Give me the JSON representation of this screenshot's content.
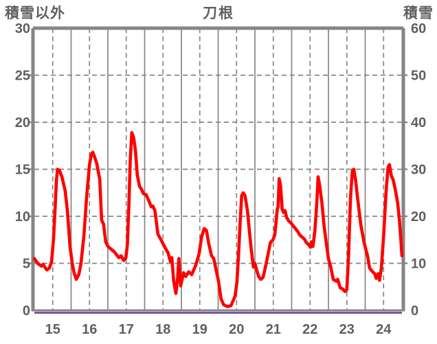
{
  "chart_data": {
    "type": "line",
    "title": "刀根",
    "left_axis_title": "積雪以外",
    "right_axis_title": "積雪",
    "left_axis": {
      "min": 0,
      "max": 30,
      "ticks": [
        0,
        5,
        10,
        15,
        20,
        25,
        30
      ]
    },
    "right_axis": {
      "min": 0,
      "max": 60,
      "ticks": [
        0,
        10,
        20,
        30,
        40,
        50,
        60
      ]
    },
    "x_axis": {
      "start_day": 15,
      "end_day": 25,
      "labels": [
        "15",
        "16",
        "17",
        "18",
        "19",
        "20",
        "21",
        "22",
        "23",
        "24"
      ],
      "label_position": "noon of each day"
    },
    "grid": {
      "horizontal": "dashed every 5 (left scale)",
      "vertical_solid": "midnight of each day",
      "vertical_dashed": "noon of each day"
    },
    "legend_position": "none",
    "series": [
      {
        "name": "積雪以外 (left axis)",
        "axis": "left",
        "color": "#ff0000",
        "points": [
          [
            15.0,
            5.5
          ],
          [
            15.09,
            5.0
          ],
          [
            15.19,
            4.7
          ],
          [
            15.24,
            4.9
          ],
          [
            15.3,
            4.5
          ],
          [
            15.34,
            4.3
          ],
          [
            15.41,
            4.5
          ],
          [
            15.47,
            5.2
          ],
          [
            15.52,
            7.5
          ],
          [
            15.56,
            10.5
          ],
          [
            15.6,
            13.8
          ],
          [
            15.63,
            15.0
          ],
          [
            15.68,
            14.9
          ],
          [
            15.75,
            14.2
          ],
          [
            15.84,
            12.7
          ],
          [
            15.9,
            10.5
          ],
          [
            15.97,
            6.8
          ],
          [
            16.03,
            5.0
          ],
          [
            16.08,
            4.0
          ],
          [
            16.14,
            3.3
          ],
          [
            16.21,
            3.8
          ],
          [
            16.27,
            5.0
          ],
          [
            16.35,
            8.0
          ],
          [
            16.42,
            12.0
          ],
          [
            16.5,
            15.5
          ],
          [
            16.55,
            16.6
          ],
          [
            16.59,
            16.8
          ],
          [
            16.64,
            16.3
          ],
          [
            16.7,
            15.6
          ],
          [
            16.78,
            13.9
          ],
          [
            16.83,
            9.6
          ],
          [
            16.88,
            9.2
          ],
          [
            16.94,
            7.3
          ],
          [
            17.0,
            6.8
          ],
          [
            17.06,
            6.6
          ],
          [
            17.12,
            6.4
          ],
          [
            17.18,
            6.2
          ],
          [
            17.24,
            5.9
          ],
          [
            17.3,
            5.6
          ],
          [
            17.36,
            5.8
          ],
          [
            17.43,
            5.3
          ],
          [
            17.49,
            5.6
          ],
          [
            17.53,
            7.0
          ],
          [
            17.57,
            11.0
          ],
          [
            17.61,
            16.0
          ],
          [
            17.65,
            18.9
          ],
          [
            17.7,
            18.4
          ],
          [
            17.75,
            17.0
          ],
          [
            17.8,
            14.4
          ],
          [
            17.86,
            13.2
          ],
          [
            17.91,
            12.9
          ],
          [
            17.97,
            12.4
          ],
          [
            18.04,
            12.3
          ],
          [
            18.12,
            11.6
          ],
          [
            18.18,
            11.0
          ],
          [
            18.22,
            11.1
          ],
          [
            18.28,
            10.6
          ],
          [
            18.36,
            8.1
          ],
          [
            18.46,
            7.4
          ],
          [
            18.55,
            6.7
          ],
          [
            18.64,
            6.1
          ],
          [
            18.7,
            5.2
          ],
          [
            18.74,
            5.6
          ],
          [
            18.79,
            3.1
          ],
          [
            18.85,
            1.8
          ],
          [
            18.9,
            3.5
          ],
          [
            18.93,
            5.5
          ],
          [
            18.98,
            2.6
          ],
          [
            19.06,
            4.0
          ],
          [
            19.12,
            3.6
          ],
          [
            19.2,
            4.1
          ],
          [
            19.28,
            3.8
          ],
          [
            19.39,
            4.8
          ],
          [
            19.48,
            6.0
          ],
          [
            19.55,
            7.8
          ],
          [
            19.62,
            8.7
          ],
          [
            19.68,
            8.5
          ],
          [
            19.75,
            7.0
          ],
          [
            19.82,
            5.8
          ],
          [
            19.88,
            5.5
          ],
          [
            19.95,
            4.2
          ],
          [
            20.01,
            3.1
          ],
          [
            20.08,
            1.2
          ],
          [
            20.15,
            0.6
          ],
          [
            20.25,
            0.4
          ],
          [
            20.35,
            0.5
          ],
          [
            20.46,
            1.5
          ],
          [
            20.51,
            3.0
          ],
          [
            20.55,
            5.5
          ],
          [
            20.6,
            9.5
          ],
          [
            20.64,
            12.2
          ],
          [
            20.68,
            12.5
          ],
          [
            20.73,
            12.2
          ],
          [
            20.8,
            10.5
          ],
          [
            20.85,
            8.4
          ],
          [
            20.9,
            6.5
          ],
          [
            20.93,
            5.5
          ],
          [
            20.96,
            4.6
          ],
          [
            21.0,
            5.0
          ],
          [
            21.04,
            4.4
          ],
          [
            21.1,
            3.6
          ],
          [
            21.16,
            3.3
          ],
          [
            21.22,
            3.5
          ],
          [
            21.28,
            4.5
          ],
          [
            21.35,
            5.8
          ],
          [
            21.42,
            7.2
          ],
          [
            21.49,
            7.5
          ],
          [
            21.54,
            8.0
          ],
          [
            21.58,
            9.6
          ],
          [
            21.61,
            10.8
          ],
          [
            21.63,
            11.0
          ],
          [
            21.66,
            14.0
          ],
          [
            21.7,
            13.2
          ],
          [
            21.74,
            10.8
          ],
          [
            21.78,
            10.4
          ],
          [
            21.82,
            10.6
          ],
          [
            21.86,
            9.9
          ],
          [
            21.92,
            9.5
          ],
          [
            21.98,
            9.3
          ],
          [
            22.04,
            9.0
          ],
          [
            22.1,
            8.7
          ],
          [
            22.16,
            8.4
          ],
          [
            22.22,
            8.0
          ],
          [
            22.28,
            7.8
          ],
          [
            22.34,
            7.6
          ],
          [
            22.4,
            7.2
          ],
          [
            22.46,
            7.0
          ],
          [
            22.51,
            6.7
          ],
          [
            22.54,
            7.3
          ],
          [
            22.58,
            6.8
          ],
          [
            22.63,
            8.4
          ],
          [
            22.68,
            11.2
          ],
          [
            22.72,
            14.2
          ],
          [
            22.76,
            13.3
          ],
          [
            22.82,
            11.5
          ],
          [
            22.88,
            9.0
          ],
          [
            22.94,
            7.2
          ],
          [
            23.0,
            5.5
          ],
          [
            23.07,
            4.5
          ],
          [
            23.13,
            3.3
          ],
          [
            23.21,
            3.1
          ],
          [
            23.25,
            3.3
          ],
          [
            23.32,
            2.4
          ],
          [
            23.38,
            2.3
          ],
          [
            23.45,
            2.0
          ],
          [
            23.5,
            2.2
          ],
          [
            23.55,
            6.0
          ],
          [
            23.6,
            12.0
          ],
          [
            23.65,
            14.8
          ],
          [
            23.69,
            15.0
          ],
          [
            23.74,
            13.8
          ],
          [
            23.79,
            12.0
          ],
          [
            23.88,
            9.1
          ],
          [
            23.97,
            7.2
          ],
          [
            24.07,
            5.7
          ],
          [
            24.12,
            4.5
          ],
          [
            24.2,
            4.1
          ],
          [
            24.26,
            3.9
          ],
          [
            24.3,
            3.4
          ],
          [
            24.35,
            3.9
          ],
          [
            24.39,
            3.2
          ],
          [
            24.44,
            4.5
          ],
          [
            24.5,
            7.9
          ],
          [
            24.57,
            12.7
          ],
          [
            24.62,
            15.2
          ],
          [
            24.66,
            15.5
          ],
          [
            24.71,
            14.3
          ],
          [
            24.76,
            13.9
          ],
          [
            24.82,
            12.8
          ],
          [
            24.88,
            11.5
          ],
          [
            24.93,
            9.6
          ],
          [
            24.97,
            7.5
          ],
          [
            25.0,
            5.8
          ]
        ]
      },
      {
        "name": "積雪 (right axis)",
        "axis": "right",
        "color": "#7a57a7",
        "points": [
          [
            15.0,
            0
          ],
          [
            25.0,
            0
          ]
        ]
      }
    ],
    "colors": {
      "main_line": "#ff0000",
      "snow_line": "#7a57a7",
      "grid": "#858585",
      "border": "#858585",
      "text": "#5f5f5f",
      "background": "#ffffff"
    }
  }
}
